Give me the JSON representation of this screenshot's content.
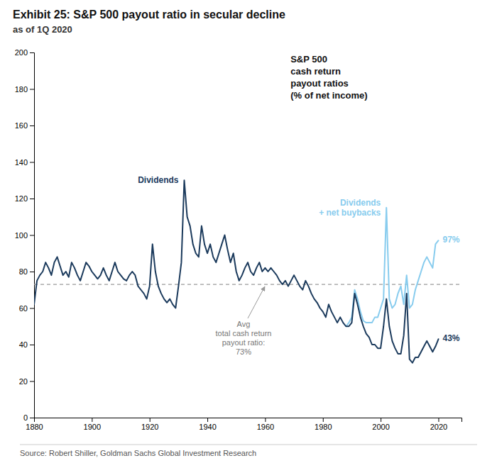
{
  "chart_data": {
    "type": "line",
    "title": "Exhibit 25: S&P 500 payout ratio in secular decline",
    "subtitle": "as of 1Q 2020",
    "source": "Source: Robert Shiller, Goldman Sachs Global Investment Research",
    "annotations": [
      {
        "text": "S&P 500\ncash return\npayout ratios\n(% of net income)"
      }
    ],
    "avg_line": {
      "value": 73,
      "label": "Avg\ntotal cash return\npayout ratio:\n73%",
      "line_style": "dashed"
    },
    "grid": false,
    "xlim": [
      1880,
      2028
    ],
    "xticks": [
      1880,
      1900,
      1920,
      1940,
      1960,
      1980,
      2000,
      2020
    ],
    "ylim": [
      0,
      200
    ],
    "yticks": [
      0,
      20,
      40,
      60,
      80,
      100,
      120,
      140,
      160,
      180,
      200
    ],
    "series": [
      {
        "name": "Dividends\n+ net buybacks",
        "color": "#88ccee",
        "x": [
          1988,
          1989,
          1990,
          1991,
          1992,
          1993,
          1994,
          1995,
          1996,
          1997,
          1998,
          1999,
          2000,
          2001,
          2002,
          2003,
          2004,
          2005,
          2006,
          2007,
          2008,
          2009,
          2010,
          2011,
          2012,
          2013,
          2014,
          2015,
          2016,
          2017,
          2018,
          2019,
          2020
        ],
        "values": [
          50,
          52,
          55,
          70,
          65,
          58,
          53,
          52,
          52,
          52,
          55,
          55,
          60,
          65,
          115,
          65,
          60,
          62,
          68,
          72,
          62,
          78,
          60,
          62,
          70,
          75,
          80,
          85,
          88,
          85,
          82,
          95,
          97
        ],
        "value_labels": [
          null,
          null,
          null,
          null,
          null,
          null,
          null,
          null,
          null,
          null,
          null,
          null,
          null,
          null,
          null,
          null,
          null,
          null,
          null,
          null,
          null,
          null,
          null,
          null,
          null,
          null,
          null,
          null,
          null,
          null,
          null,
          null,
          "97%"
        ]
      },
      {
        "name": "Dividends",
        "color": "#1b3a5c",
        "x": [
          1880,
          1881,
          1882,
          1883,
          1884,
          1885,
          1886,
          1887,
          1888,
          1889,
          1890,
          1891,
          1892,
          1893,
          1894,
          1895,
          1896,
          1897,
          1898,
          1899,
          1900,
          1901,
          1902,
          1903,
          1904,
          1905,
          1906,
          1907,
          1908,
          1909,
          1910,
          1911,
          1912,
          1913,
          1914,
          1915,
          1916,
          1917,
          1918,
          1919,
          1920,
          1921,
          1922,
          1923,
          1924,
          1925,
          1926,
          1927,
          1928,
          1929,
          1930,
          1931,
          1932,
          1933,
          1934,
          1935,
          1936,
          1937,
          1938,
          1939,
          1940,
          1941,
          1942,
          1943,
          1944,
          1945,
          1946,
          1947,
          1948,
          1949,
          1950,
          1951,
          1952,
          1953,
          1954,
          1955,
          1956,
          1957,
          1958,
          1959,
          1960,
          1961,
          1962,
          1963,
          1964,
          1965,
          1966,
          1967,
          1968,
          1969,
          1970,
          1971,
          1972,
          1973,
          1974,
          1975,
          1976,
          1977,
          1978,
          1979,
          1980,
          1981,
          1982,
          1983,
          1984,
          1985,
          1986,
          1987,
          1988,
          1989,
          1990,
          1991,
          1992,
          1993,
          1994,
          1995,
          1996,
          1997,
          1998,
          1999,
          2000,
          2001,
          2002,
          2003,
          2004,
          2005,
          2006,
          2007,
          2008,
          2009,
          2010,
          2011,
          2012,
          2013,
          2014,
          2015,
          2016,
          2017,
          2018,
          2019,
          2020
        ],
        "values": [
          62,
          75,
          78,
          80,
          85,
          82,
          78,
          85,
          88,
          83,
          78,
          80,
          77,
          85,
          82,
          78,
          75,
          80,
          85,
          83,
          80,
          78,
          76,
          78,
          82,
          78,
          75,
          80,
          85,
          80,
          78,
          76,
          75,
          78,
          80,
          78,
          72,
          70,
          68,
          65,
          72,
          95,
          80,
          72,
          68,
          65,
          63,
          65,
          62,
          60,
          72,
          85,
          130,
          110,
          105,
          95,
          90,
          88,
          105,
          95,
          90,
          95,
          88,
          85,
          90,
          95,
          100,
          92,
          85,
          90,
          80,
          75,
          78,
          82,
          85,
          80,
          78,
          82,
          85,
          80,
          82,
          80,
          82,
          80,
          78,
          75,
          73,
          75,
          72,
          75,
          78,
          75,
          72,
          70,
          75,
          72,
          68,
          65,
          63,
          60,
          58,
          55,
          62,
          58,
          55,
          52,
          55,
          52,
          50,
          50,
          52,
          68,
          62,
          55,
          50,
          46,
          44,
          40,
          40,
          38,
          38,
          50,
          65,
          50,
          42,
          38,
          35,
          35,
          45,
          68,
          32,
          30,
          33,
          33,
          36,
          39,
          42,
          39,
          36,
          39,
          43
        ],
        "value_labels": [
          null,
          null,
          null,
          null,
          null,
          null,
          null,
          null,
          null,
          null,
          null,
          null,
          null,
          null,
          null,
          null,
          null,
          null,
          null,
          null,
          null,
          null,
          null,
          null,
          null,
          null,
          null,
          null,
          null,
          null,
          null,
          null,
          null,
          null,
          null,
          null,
          null,
          null,
          null,
          null,
          null,
          null,
          null,
          null,
          null,
          null,
          null,
          null,
          null,
          null,
          null,
          null,
          null,
          null,
          null,
          null,
          null,
          null,
          null,
          null,
          null,
          null,
          null,
          null,
          null,
          null,
          null,
          null,
          null,
          null,
          null,
          null,
          null,
          null,
          null,
          null,
          null,
          null,
          null,
          null,
          null,
          null,
          null,
          null,
          null,
          null,
          null,
          null,
          null,
          null,
          null,
          null,
          null,
          null,
          null,
          null,
          null,
          null,
          null,
          null,
          null,
          null,
          null,
          null,
          null,
          null,
          null,
          null,
          null,
          null,
          null,
          null,
          null,
          null,
          null,
          null,
          null,
          null,
          null,
          null,
          null,
          null,
          null,
          null,
          null,
          null,
          null,
          null,
          null,
          null,
          null,
          null,
          null,
          null,
          null,
          null,
          null,
          null,
          null,
          null,
          "43%"
        ]
      }
    ]
  }
}
